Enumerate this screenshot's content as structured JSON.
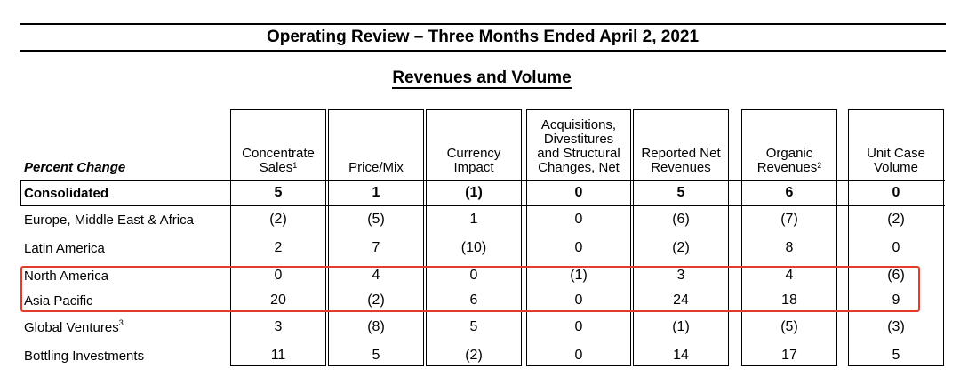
{
  "title": "Operating Review – Three Months Ended April 2, 2021",
  "subtitle": "Revenues and Volume",
  "row_header": "Percent Change",
  "columns": [
    {
      "lines": [
        "Concentrate",
        "Sales"
      ],
      "sup": "1"
    },
    {
      "lines": [
        "Price/Mix"
      ],
      "sup": ""
    },
    {
      "lines": [
        "Currency",
        "Impact"
      ],
      "sup": ""
    },
    {
      "lines": [
        "Acquisitions,",
        "Divestitures",
        "and Structural",
        "Changes, Net"
      ],
      "sup": ""
    },
    {
      "lines": [
        "Reported Net",
        "Revenues"
      ],
      "sup": ""
    },
    {
      "lines": [
        "Organic",
        "Revenues"
      ],
      "sup": "2"
    },
    {
      "lines": [
        "Unit Case",
        "Volume"
      ],
      "sup": ""
    }
  ],
  "rows": [
    {
      "label": "Consolidated",
      "sup": "",
      "bold": true,
      "values": [
        "5",
        "1",
        "(1)",
        "0",
        "5",
        "6",
        "0"
      ]
    },
    {
      "label": "Europe, Middle East & Africa",
      "sup": "",
      "bold": false,
      "values": [
        "(2)",
        "(5)",
        "1",
        "0",
        "(6)",
        "(7)",
        "(2)"
      ]
    },
    {
      "label": "Latin America",
      "sup": "",
      "bold": false,
      "values": [
        "2",
        "7",
        "(10)",
        "0",
        "(2)",
        "8",
        "0"
      ]
    },
    {
      "label": "North America",
      "sup": "",
      "bold": false,
      "values": [
        "0",
        "4",
        "0",
        "(1)",
        "3",
        "4",
        "(6)"
      ]
    },
    {
      "label": "Asia Pacific",
      "sup": "",
      "bold": false,
      "values": [
        "20",
        "(2)",
        "6",
        "0",
        "24",
        "18",
        "9"
      ]
    },
    {
      "label": "Global Ventures",
      "sup": "3",
      "bold": false,
      "values": [
        "3",
        "(8)",
        "5",
        "0",
        "(1)",
        "(5)",
        "(3)"
      ]
    },
    {
      "label": "Bottling Investments",
      "sup": "",
      "bold": false,
      "values": [
        "11",
        "5",
        "(2)",
        "0",
        "14",
        "17",
        "5"
      ]
    }
  ],
  "highlight_color": "#e53b2c"
}
